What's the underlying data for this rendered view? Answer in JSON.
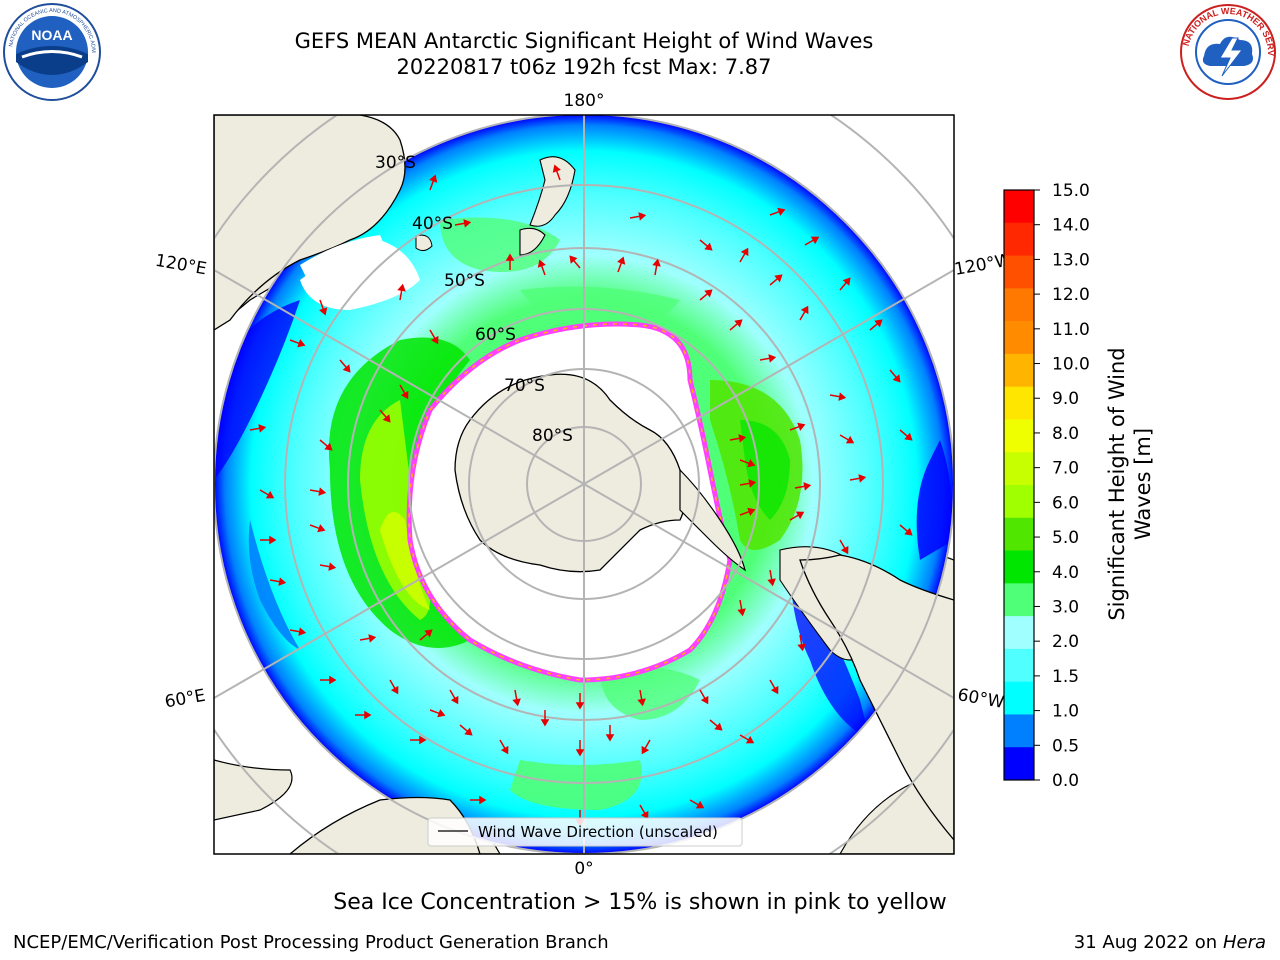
{
  "header": {
    "title_line1": "GEFS MEAN Antarctic Significant Height of Wind Waves",
    "title_line2": "20220817 t06z 192h fcst   Max: 7.87"
  },
  "logos": {
    "left": {
      "icon": "noaa-logo",
      "text": "NOAA"
    },
    "right": {
      "icon": "nws-logo",
      "text": "NATIONAL WEATHER SERVICE"
    }
  },
  "map": {
    "projection": "south polar stereographic",
    "lon_labels": [
      "180°",
      "120°E",
      "120°W",
      "60°E",
      "60°W",
      "0°"
    ],
    "lat_labels": [
      "30°S",
      "40°S",
      "50°S",
      "60°S",
      "70°S",
      "80°S"
    ],
    "legend": "Wind Wave Direction (unscaled)"
  },
  "colorbar": {
    "label": "Significant Height of Wind Waves [m]",
    "label_line1": "Significant Height of Wind",
    "label_line2": "Waves [m]",
    "ticks": [
      "15.0",
      "14.0",
      "13.0",
      "12.0",
      "11.0",
      "10.0",
      "9.0",
      "8.0",
      "7.0",
      "6.0",
      "5.0",
      "4.0",
      "3.0",
      "2.0",
      "1.5",
      "1.0",
      "0.5",
      "0.0"
    ],
    "colors_top_to_bottom": [
      "#ff0000",
      "#ff2800",
      "#ff5000",
      "#ff7800",
      "#ff8c00",
      "#ffb400",
      "#ffe600",
      "#f0ff00",
      "#c8ff00",
      "#a0ff00",
      "#50e600",
      "#00e600",
      "#50ff78",
      "#a0ffff",
      "#50ffff",
      "#00ffff",
      "#0080ff",
      "#0000ff"
    ]
  },
  "footer": {
    "note": "Sea Ice Concentration > 15% is shown in pink to yellow",
    "org": "NCEP/EMC/Verification Post Processing Product Generation Branch",
    "date": "31 Aug 2022 on",
    "machine": "Hera"
  }
}
